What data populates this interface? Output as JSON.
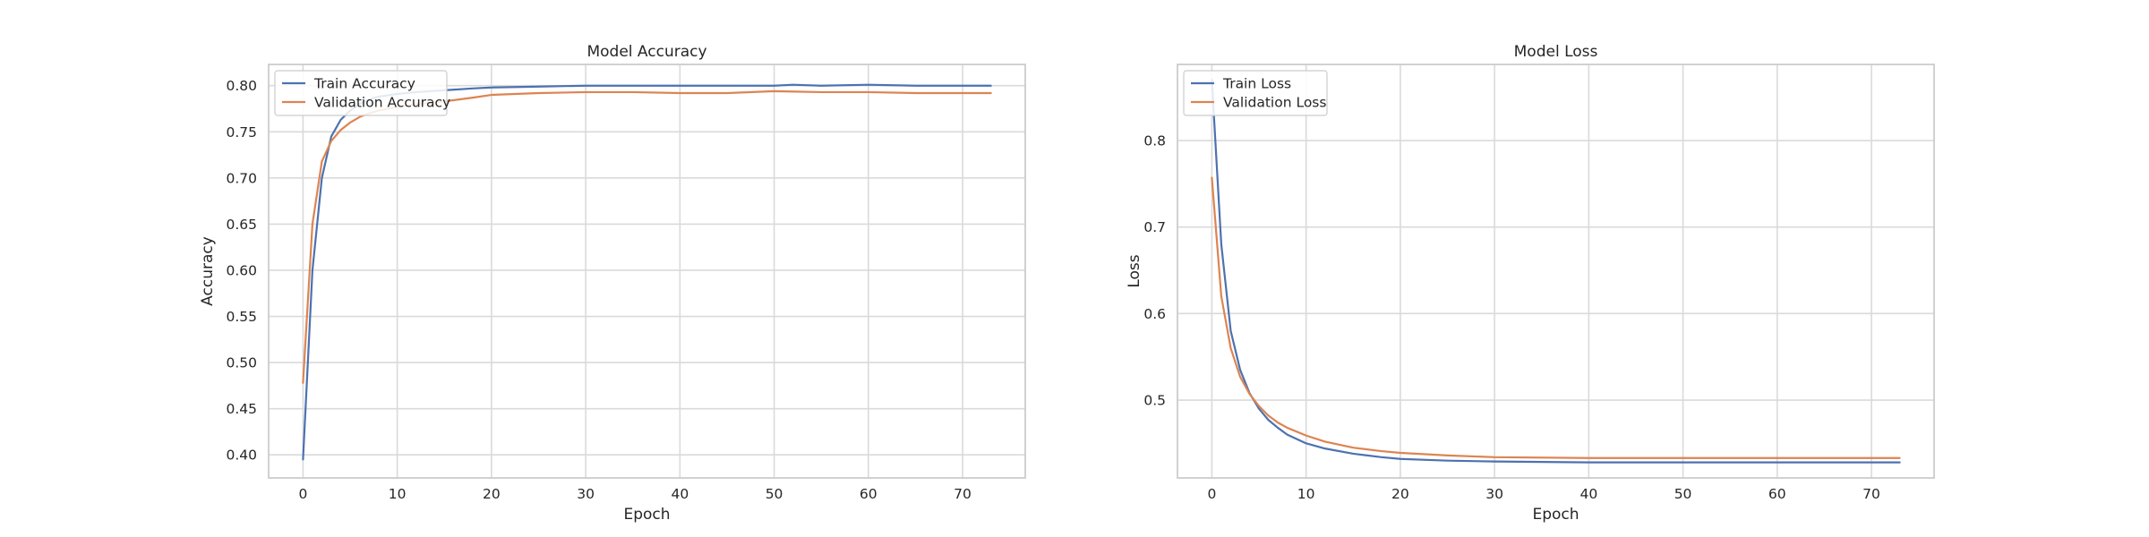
{
  "chart_data": [
    {
      "type": "line",
      "title": "Model Accuracy",
      "xlabel": "Epoch",
      "ylabel": "Accuracy",
      "xlim": [
        -3.65,
        76.65
      ],
      "ylim": [
        0.375,
        0.823
      ],
      "xticks": [
        0,
        10,
        20,
        30,
        40,
        50,
        60,
        70
      ],
      "yticks": [
        0.4,
        0.45,
        0.5,
        0.55,
        0.6,
        0.65,
        0.7,
        0.75,
        0.8
      ],
      "ytick_decimals": 2,
      "grid": true,
      "legend_position": "upper left",
      "colors": [
        "#4c72b0",
        "#dd8452"
      ],
      "series": [
        {
          "name": "Train Accuracy",
          "x": [
            0,
            1,
            2,
            3,
            4,
            5,
            6,
            7,
            8,
            10,
            12,
            15,
            18,
            20,
            25,
            30,
            35,
            40,
            45,
            50,
            52,
            55,
            60,
            65,
            70,
            73
          ],
          "y": [
            0.395,
            0.6,
            0.7,
            0.745,
            0.763,
            0.773,
            0.78,
            0.785,
            0.788,
            0.791,
            0.793,
            0.795,
            0.797,
            0.798,
            0.799,
            0.8,
            0.8,
            0.8,
            0.8,
            0.8,
            0.801,
            0.8,
            0.801,
            0.8,
            0.8,
            0.8
          ]
        },
        {
          "name": "Validation Accuracy",
          "x": [
            0,
            1,
            2,
            3,
            4,
            5,
            6,
            7,
            8,
            10,
            12,
            15,
            18,
            20,
            25,
            30,
            35,
            40,
            45,
            50,
            55,
            60,
            65,
            70,
            73
          ],
          "y": [
            0.478,
            0.65,
            0.718,
            0.74,
            0.752,
            0.76,
            0.766,
            0.77,
            0.773,
            0.777,
            0.78,
            0.783,
            0.787,
            0.79,
            0.792,
            0.793,
            0.793,
            0.792,
            0.792,
            0.794,
            0.793,
            0.793,
            0.792,
            0.792,
            0.792
          ]
        }
      ]
    },
    {
      "type": "line",
      "title": "Model Loss",
      "xlabel": "Epoch",
      "ylabel": "Loss",
      "xlim": [
        -3.65,
        76.65
      ],
      "ylim": [
        0.41,
        0.888
      ],
      "xticks": [
        0,
        10,
        20,
        30,
        40,
        50,
        60,
        70
      ],
      "yticks": [
        0.5,
        0.6,
        0.7,
        0.8
      ],
      "ytick_decimals": 1,
      "grid": true,
      "legend_position": "upper left",
      "colors": [
        "#4c72b0",
        "#dd8452"
      ],
      "series": [
        {
          "name": "Train Loss",
          "x": [
            0,
            1,
            2,
            3,
            4,
            5,
            6,
            7,
            8,
            10,
            12,
            15,
            18,
            20,
            25,
            30,
            40,
            50,
            60,
            70,
            73
          ],
          "y": [
            0.87,
            0.68,
            0.58,
            0.535,
            0.508,
            0.49,
            0.477,
            0.468,
            0.46,
            0.45,
            0.444,
            0.438,
            0.434,
            0.432,
            0.43,
            0.429,
            0.428,
            0.428,
            0.428,
            0.428,
            0.428
          ]
        },
        {
          "name": "Validation Loss",
          "x": [
            0,
            1,
            2,
            3,
            4,
            5,
            6,
            7,
            8,
            10,
            12,
            15,
            18,
            20,
            25,
            30,
            40,
            50,
            60,
            70,
            73
          ],
          "y": [
            0.757,
            0.62,
            0.56,
            0.527,
            0.507,
            0.493,
            0.482,
            0.474,
            0.468,
            0.459,
            0.452,
            0.445,
            0.441,
            0.439,
            0.436,
            0.434,
            0.433,
            0.433,
            0.433,
            0.433,
            0.433
          ]
        }
      ]
    }
  ]
}
